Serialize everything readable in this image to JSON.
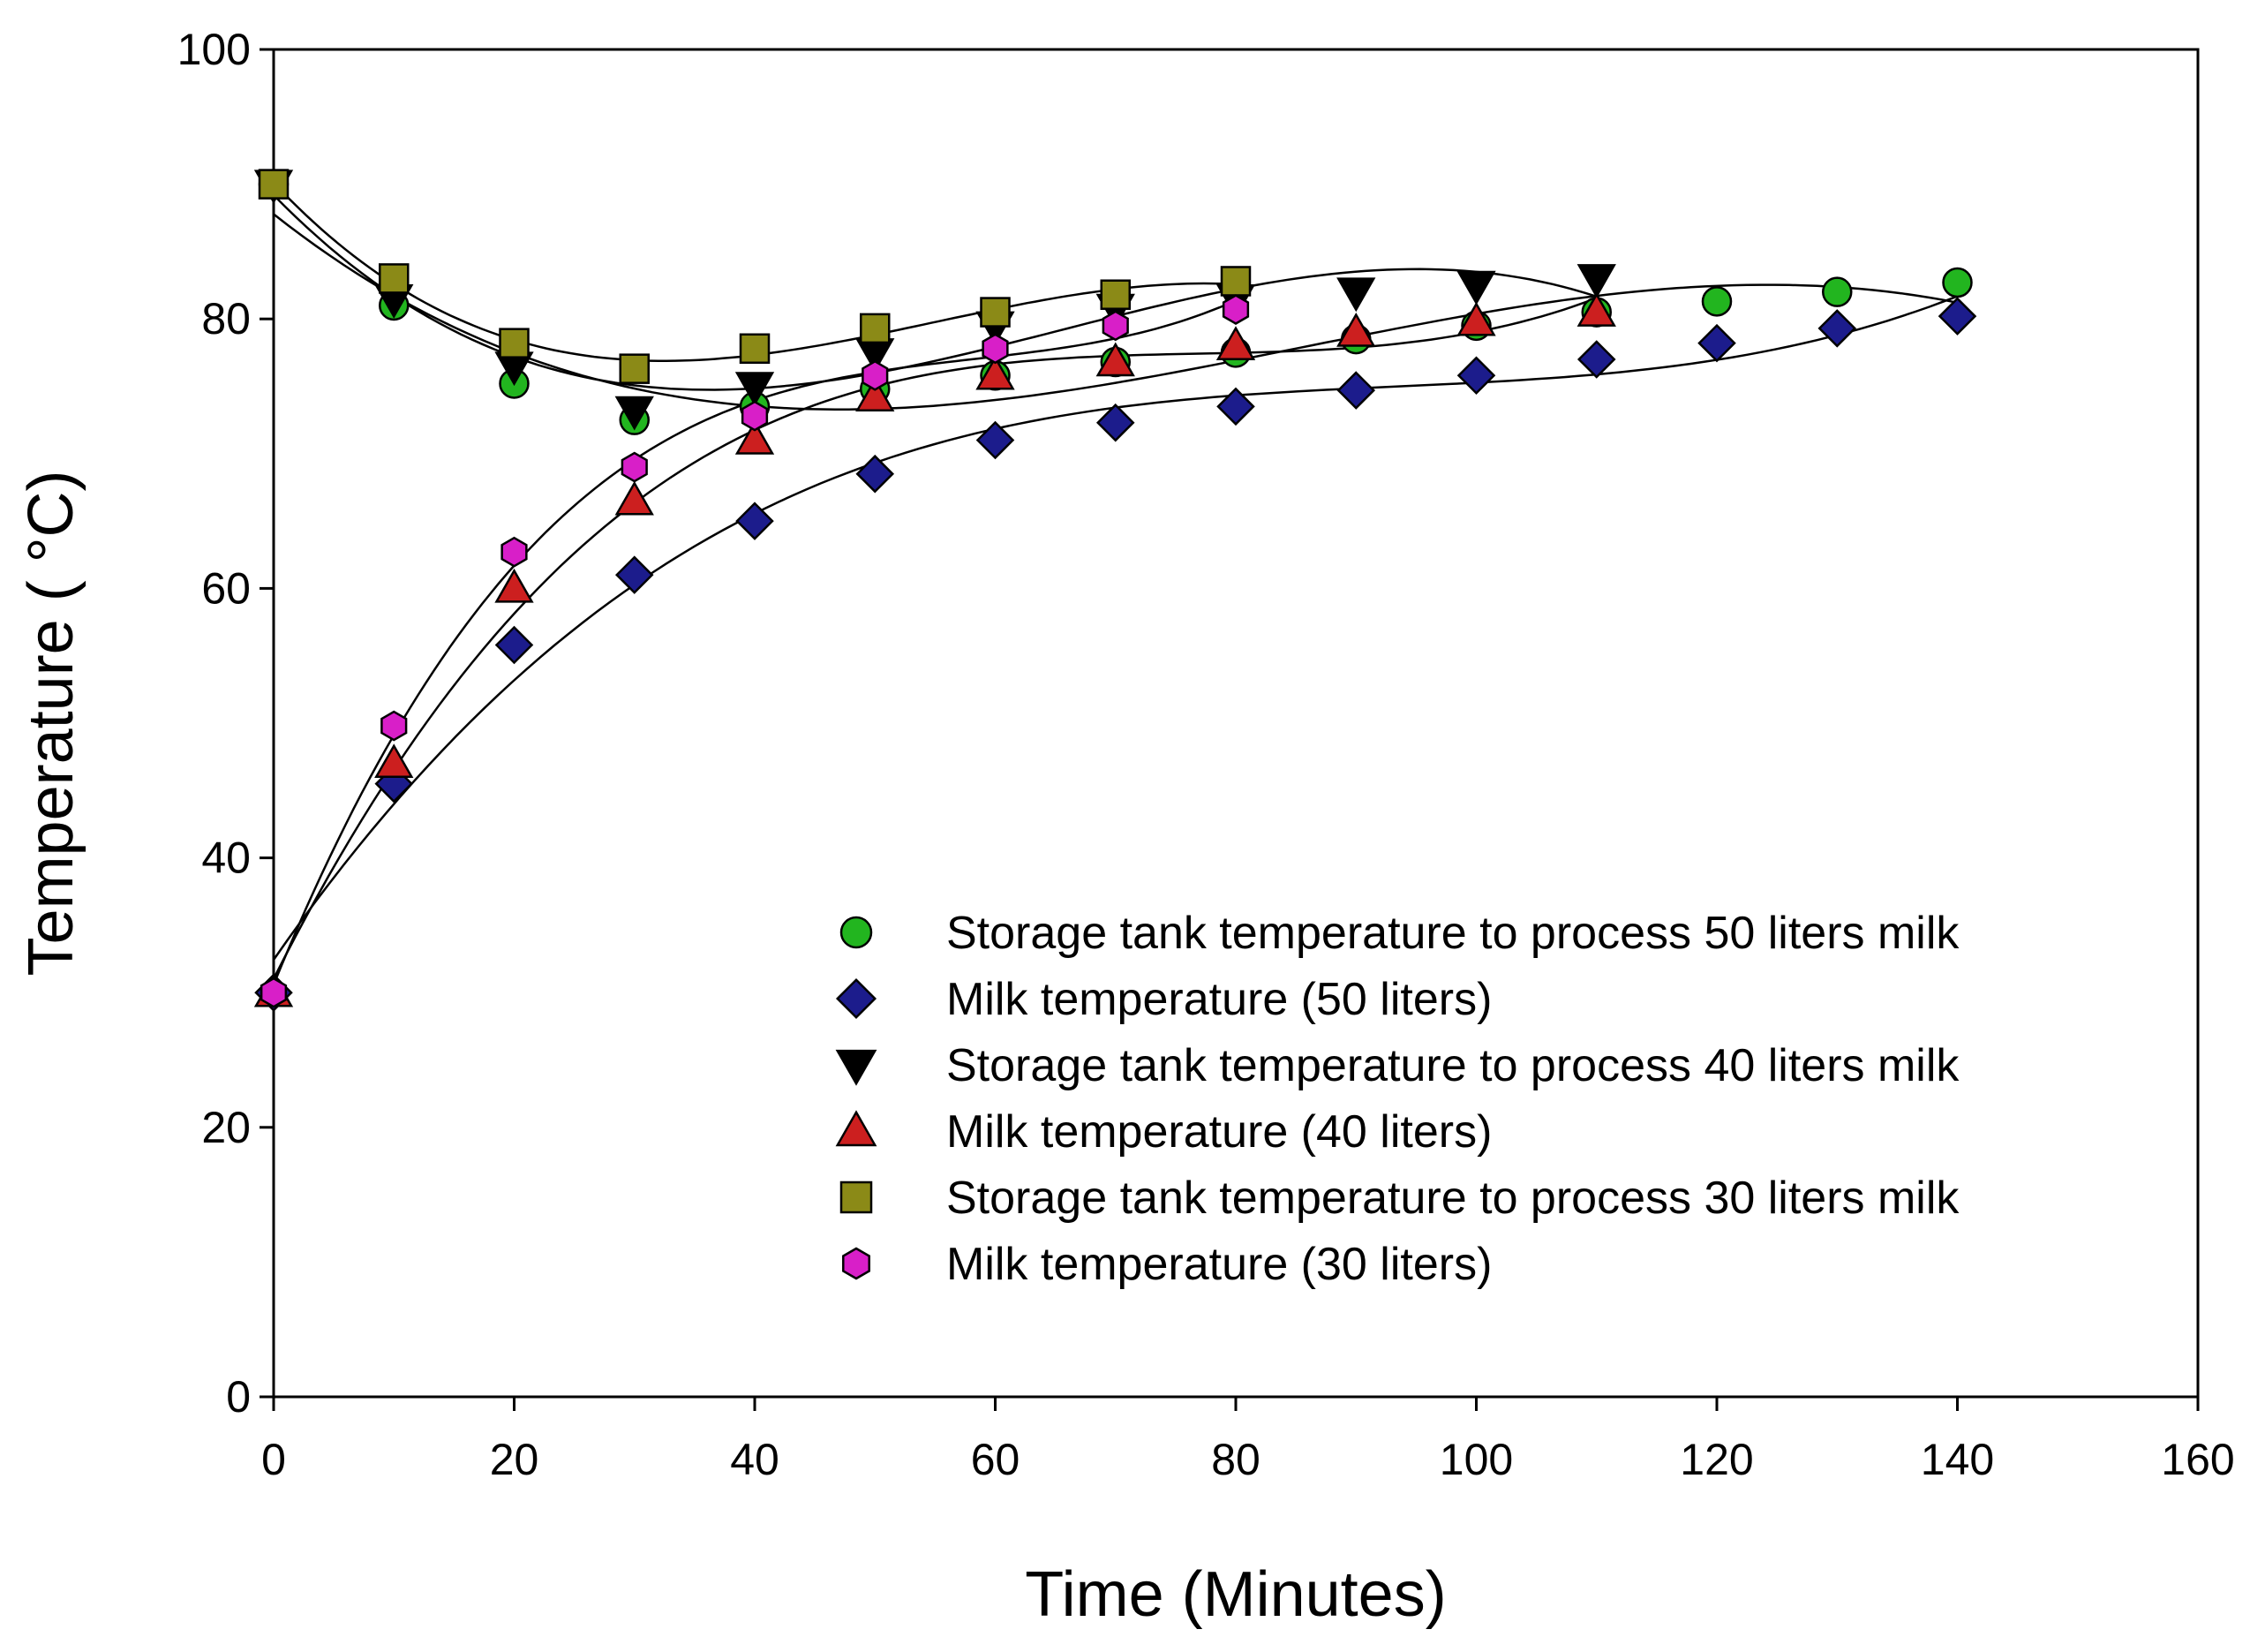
{
  "chart_data": {
    "type": "scatter",
    "title": "",
    "xlabel": "Time (Minutes)",
    "ylabel": "Temperature ( °C)",
    "xlim": [
      0,
      160
    ],
    "ylim": [
      0,
      100
    ],
    "xticks": [
      0,
      20,
      40,
      60,
      80,
      100,
      120,
      140,
      160
    ],
    "yticks": [
      0,
      20,
      40,
      60,
      80,
      100
    ],
    "grid": false,
    "legend_position": "bottom-right",
    "fit_lines": "black polynomial trend line per series",
    "series": [
      {
        "name": "Storage tank temperature to process 50 liters milk",
        "marker": "circle",
        "color": "#22b51f",
        "x": [
          0,
          10,
          20,
          30,
          40,
          50,
          60,
          70,
          80,
          90,
          100,
          110,
          120,
          130,
          140
        ],
        "y": [
          90,
          81,
          75.2,
          72.5,
          73.5,
          74.8,
          75.8,
          76.8,
          77.5,
          78.5,
          79.5,
          80.5,
          81.3,
          82.0,
          82.7
        ]
      },
      {
        "name": "Milk temperature (50 liters)",
        "marker": "diamond",
        "color": "#1c1c8c",
        "x": [
          0,
          10,
          20,
          30,
          40,
          50,
          60,
          70,
          80,
          90,
          100,
          110,
          120,
          130,
          140
        ],
        "y": [
          30,
          45.5,
          55.8,
          61,
          65,
          68.5,
          71,
          72.3,
          73.5,
          74.7,
          75.8,
          77,
          78.2,
          79.3,
          80.2
        ]
      },
      {
        "name": "Storage tank temperature to process 40 liters milk",
        "marker": "triangle-down",
        "color": "#000000",
        "x": [
          0,
          10,
          20,
          30,
          40,
          50,
          60,
          70,
          80,
          90,
          100,
          110
        ],
        "y": [
          90,
          81.5,
          76.5,
          73.2,
          75,
          77.5,
          79.5,
          80.8,
          81.5,
          82,
          82.5,
          83
        ]
      },
      {
        "name": "Milk temperature (40 liters)",
        "marker": "triangle-up",
        "color": "#cc1f1f",
        "x": [
          0,
          10,
          20,
          30,
          40,
          50,
          60,
          70,
          80,
          90,
          100,
          110
        ],
        "y": [
          30,
          47,
          60,
          66.5,
          71,
          74.2,
          75.8,
          76.8,
          78,
          79,
          79.8,
          80.5
        ]
      },
      {
        "name": "Storage tank temperature to process 30 liters milk",
        "marker": "square",
        "color": "#8b8a17",
        "x": [
          0,
          10,
          20,
          30,
          40,
          50,
          60,
          70,
          80
        ],
        "y": [
          90,
          83,
          78.2,
          76.3,
          77.8,
          79.3,
          80.5,
          81.8,
          82.8
        ]
      },
      {
        "name": "Milk temperature (30 liters)",
        "marker": "hexagon",
        "color": "#d81fc8",
        "x": [
          0,
          10,
          20,
          30,
          40,
          50,
          60,
          70,
          80
        ],
        "y": [
          30,
          49.8,
          62.7,
          69,
          72.8,
          75.8,
          77.8,
          79.5,
          80.7
        ]
      }
    ]
  }
}
